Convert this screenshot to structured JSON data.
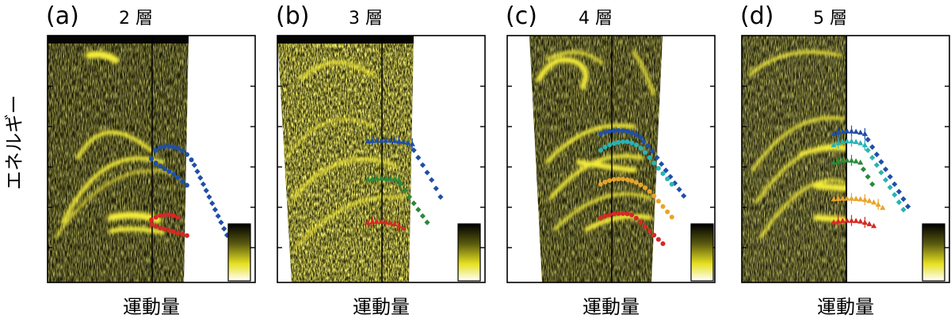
{
  "ylabel": "エネルギー",
  "xlabel": "運動量",
  "chart_data": [
    {
      "type": "scatter",
      "letter": "(a)",
      "title": "2 層",
      "xlabel": "運動量",
      "ylabel": "エネルギー",
      "series": [
        {
          "color": "#1f4fa8",
          "marker": "circle",
          "x": [
            0.77,
            0.8,
            0.83,
            0.86,
            0.89,
            0.92,
            0.95,
            0.98,
            1.01,
            1.04
          ],
          "y": [
            0.58,
            0.54,
            0.527,
            0.522,
            0.522,
            0.525,
            0.531,
            0.542,
            0.56,
            0.585
          ]
        },
        {
          "color": "#1f4fa8",
          "marker": "diamond",
          "x": [
            1.06,
            1.08,
            1.1,
            1.12,
            1.14,
            1.16,
            1.18,
            1.2,
            1.22,
            1.24,
            1.26,
            1.28
          ],
          "y": [
            0.61,
            0.64,
            0.67,
            0.7,
            0.73,
            0.76,
            0.79,
            0.82,
            0.85,
            0.88,
            0.91,
            0.94
          ]
        },
        {
          "color": "#1f4fa8",
          "marker": "circle",
          "x": [
            0.77,
            0.8,
            0.83,
            0.86,
            0.89,
            0.92,
            0.95,
            0.98,
            1.01
          ],
          "y": [
            0.58,
            0.6,
            0.615,
            0.628,
            0.64,
            0.653,
            0.668,
            0.686,
            0.705
          ]
        },
        {
          "color": "#d42a24",
          "marker": "circle",
          "x": [
            0.77,
            0.8,
            0.83,
            0.86,
            0.89,
            0.92,
            0.95
          ],
          "y": [
            0.868,
            0.856,
            0.848,
            0.844,
            0.844,
            0.848,
            0.856
          ]
        },
        {
          "color": "#d42a24",
          "marker": "circle",
          "x": [
            0.77,
            0.8,
            0.83,
            0.86,
            0.89,
            0.92,
            0.95,
            0.98,
            1.01
          ],
          "y": [
            0.89,
            0.898,
            0.906,
            0.912,
            0.918,
            0.924,
            0.93,
            0.936,
            0.942
          ]
        }
      ]
    },
    {
      "type": "scatter",
      "letter": "(b)",
      "title": "3 層",
      "xlabel": "運動量",
      "ylabel": "エネルギー",
      "series": [
        {
          "color": "#1f4fa8",
          "marker": "triangle",
          "errorbars": true,
          "x": [
            0.68,
            0.71,
            0.74,
            0.77,
            0.8,
            0.83,
            0.86,
            0.89,
            0.92,
            0.95,
            0.98
          ],
          "y": [
            0.498,
            0.495,
            0.494,
            0.494,
            0.494,
            0.494,
            0.495,
            0.497,
            0.5,
            0.504,
            0.51
          ]
        },
        {
          "color": "#1f4fa8",
          "marker": "diamond",
          "x": [
            0.99,
            1.02,
            1.05,
            1.08,
            1.11,
            1.14,
            1.17
          ],
          "y": [
            0.54,
            0.575,
            0.61,
            0.645,
            0.68,
            0.72,
            0.76
          ]
        },
        {
          "color": "#2a8a3a",
          "marker": "triangle",
          "errorbars": true,
          "x": [
            0.68,
            0.71,
            0.74,
            0.77,
            0.8,
            0.83,
            0.86,
            0.89
          ],
          "y": [
            0.676,
            0.673,
            0.672,
            0.672,
            0.673,
            0.674,
            0.676,
            0.68
          ]
        },
        {
          "color": "#2a8a3a",
          "marker": "diamond",
          "x": [
            0.9,
            0.93,
            0.96,
            0.99,
            1.02,
            1.05,
            1.08
          ],
          "y": [
            0.7,
            0.73,
            0.76,
            0.79,
            0.82,
            0.85,
            0.88
          ]
        },
        {
          "color": "#d42a24",
          "marker": "triangle",
          "errorbars": true,
          "x": [
            0.68,
            0.71,
            0.74,
            0.77,
            0.8,
            0.83,
            0.86,
            0.89,
            0.92
          ],
          "y": [
            0.88,
            0.876,
            0.875,
            0.876,
            0.878,
            0.882,
            0.888,
            0.896,
            0.906
          ]
        }
      ]
    },
    {
      "type": "scatter",
      "letter": "(c)",
      "title": "4 層",
      "xlabel": "運動量",
      "ylabel": "エネルギー",
      "series": [
        {
          "color": "#1f4fa8",
          "marker": "circle",
          "x": [
            0.7,
            0.73,
            0.76,
            0.79,
            0.82,
            0.85,
            0.88,
            0.91,
            0.94,
            0.97
          ],
          "y": [
            0.464,
            0.456,
            0.451,
            0.448,
            0.447,
            0.448,
            0.451,
            0.457,
            0.466,
            0.478
          ]
        },
        {
          "color": "#1f4fa8",
          "marker": "diamond",
          "x": [
            0.99,
            1.02,
            1.05,
            1.08,
            1.11,
            1.14,
            1.17,
            1.2,
            1.23,
            1.26
          ],
          "y": [
            0.5,
            0.52,
            0.545,
            0.575,
            0.605,
            0.635,
            0.665,
            0.695,
            0.725,
            0.755
          ]
        },
        {
          "color": "#2ab3b3",
          "marker": "circle",
          "x": [
            0.7,
            0.73,
            0.76,
            0.79,
            0.82,
            0.85,
            0.88,
            0.91,
            0.94,
            0.97,
            1.0,
            1.03,
            1.06,
            1.09,
            1.12,
            1.15,
            1.18
          ],
          "y": [
            0.54,
            0.525,
            0.515,
            0.508,
            0.503,
            0.5,
            0.5,
            0.505,
            0.515,
            0.53,
            0.55,
            0.575,
            0.6,
            0.625,
            0.65,
            0.675,
            0.7
          ]
        },
        {
          "color": "#e8a52a",
          "marker": "circle",
          "x": [
            0.7,
            0.73,
            0.76,
            0.79,
            0.82,
            0.85,
            0.88,
            0.91,
            0.94,
            0.97,
            1.0,
            1.03,
            1.06,
            1.09,
            1.12,
            1.15,
            1.18
          ],
          "y": [
            0.7,
            0.69,
            0.683,
            0.678,
            0.676,
            0.676,
            0.679,
            0.684,
            0.692,
            0.703,
            0.717,
            0.734,
            0.755,
            0.78,
            0.805,
            0.83,
            0.855
          ]
        },
        {
          "color": "#d42a24",
          "marker": "circle",
          "x": [
            0.7,
            0.73,
            0.76,
            0.79,
            0.82,
            0.85,
            0.88,
            0.91,
            0.94,
            0.97,
            1.0,
            1.03,
            1.06,
            1.09,
            1.12
          ],
          "y": [
            0.86,
            0.85,
            0.844,
            0.84,
            0.838,
            0.838,
            0.84,
            0.845,
            0.86,
            0.88,
            0.9,
            0.92,
            0.94,
            0.96,
            0.98
          ]
        }
      ]
    },
    {
      "type": "scatter",
      "letter": "(d)",
      "title": "5 層",
      "xlabel": "運動量",
      "ylabel": "エネルギー",
      "series": [
        {
          "color": "#1f4fa8",
          "marker": "triangle",
          "errorbars": true,
          "x": [
            0.69,
            0.72,
            0.75,
            0.78,
            0.81,
            0.84,
            0.87,
            0.9
          ],
          "y": [
            0.462,
            0.456,
            0.452,
            0.45,
            0.45,
            0.452,
            0.456,
            0.462
          ]
        },
        {
          "color": "#1f4fa8",
          "marker": "diamond",
          "x": [
            0.92,
            0.95,
            0.98,
            1.01,
            1.04,
            1.07,
            1.1,
            1.13,
            1.16,
            1.19
          ],
          "y": [
            0.49,
            0.525,
            0.56,
            0.595,
            0.63,
            0.665,
            0.7,
            0.735,
            0.77,
            0.805
          ]
        },
        {
          "color": "#2ab3b3",
          "marker": "triangle",
          "errorbars": true,
          "x": [
            0.69,
            0.72,
            0.75,
            0.78,
            0.81,
            0.84,
            0.87,
            0.9
          ],
          "y": [
            0.515,
            0.505,
            0.5,
            0.497,
            0.497,
            0.5,
            0.506,
            0.515
          ]
        },
        {
          "color": "#2ab3b3",
          "marker": "diamond",
          "x": [
            0.92,
            0.95,
            0.98,
            1.01,
            1.04,
            1.07,
            1.1,
            1.13,
            1.16
          ],
          "y": [
            0.54,
            0.575,
            0.61,
            0.645,
            0.68,
            0.715,
            0.75,
            0.785,
            0.82
          ]
        },
        {
          "color": "#2a8a3a",
          "marker": "triangle",
          "errorbars": true,
          "x": [
            0.69,
            0.72,
            0.75,
            0.78,
            0.81,
            0.84,
            0.87
          ],
          "y": [
            0.597,
            0.591,
            0.588,
            0.587,
            0.588,
            0.591,
            0.597
          ]
        },
        {
          "color": "#2a8a3a",
          "marker": "diamond",
          "x": [
            0.89,
            0.92,
            0.95
          ],
          "y": [
            0.63,
            0.665,
            0.7
          ]
        },
        {
          "color": "#e8a52a",
          "marker": "triangle",
          "errorbars": true,
          "x": [
            0.69,
            0.72,
            0.75,
            0.78,
            0.81,
            0.84,
            0.87,
            0.9,
            0.93,
            0.96,
            0.99,
            1.02
          ],
          "y": [
            0.77,
            0.768,
            0.767,
            0.767,
            0.767,
            0.768,
            0.77,
            0.773,
            0.778,
            0.785,
            0.795,
            0.81
          ]
        },
        {
          "color": "#d42a24",
          "marker": "triangle",
          "errorbars": true,
          "x": [
            0.69,
            0.72,
            0.75,
            0.78,
            0.81,
            0.84,
            0.87,
            0.9,
            0.93,
            0.96
          ],
          "y": [
            0.878,
            0.874,
            0.872,
            0.871,
            0.871,
            0.872,
            0.875,
            0.88,
            0.887,
            0.896
          ]
        }
      ]
    }
  ]
}
